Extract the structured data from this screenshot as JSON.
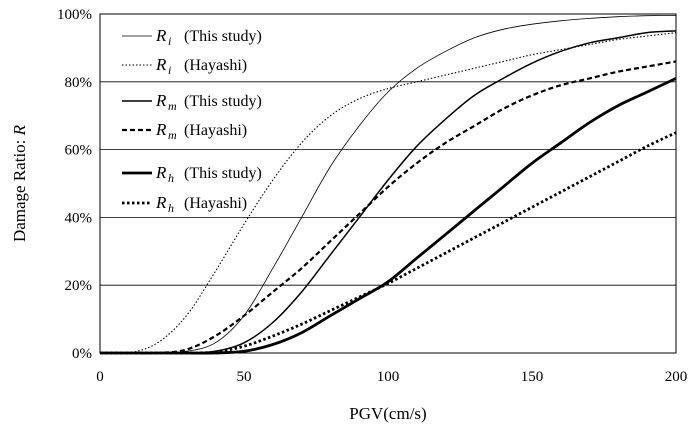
{
  "chart_data": {
    "type": "line",
    "title": "",
    "xlabel": "PGV(cm/s)",
    "ylabel": "Damage Ratio: ",
    "ylabel_symbol": "R",
    "xlim": [
      0,
      200
    ],
    "ylim": [
      0,
      100
    ],
    "x_ticks": [
      "0",
      "50",
      "100",
      "150",
      "200"
    ],
    "y_ticks": [
      "0%",
      "20%",
      "40%",
      "60%",
      "80%",
      "100%"
    ],
    "grid": "horizontal",
    "legend_position": "top-left",
    "x": [
      0,
      10,
      20,
      30,
      40,
      50,
      60,
      70,
      80,
      90,
      100,
      110,
      120,
      130,
      140,
      150,
      160,
      170,
      180,
      190,
      200
    ],
    "series": [
      {
        "symbol": "R",
        "sub": "i",
        "source": "(This study)",
        "style": "thin-solid",
        "values": [
          0,
          0,
          0,
          0.5,
          3,
          11,
          25,
          40,
          55,
          67,
          77,
          84,
          89,
          93,
          95.5,
          97,
          98,
          98.7,
          99.2,
          99.5,
          99.6
        ]
      },
      {
        "symbol": "R",
        "sub": "i",
        "source": "(Hayashi)",
        "style": "thin-dotted",
        "values": [
          0,
          0,
          3,
          11,
          24,
          38,
          51,
          62,
          70,
          75,
          78,
          80,
          82,
          84,
          86,
          88,
          89.5,
          91,
          92.5,
          93.5,
          94.5
        ]
      },
      {
        "symbol": "R",
        "sub": "m",
        "source": "(This study)",
        "style": "medium-solid",
        "values": [
          0,
          0,
          0,
          0,
          0.5,
          3,
          9,
          18,
          29,
          40,
          51,
          61,
          69,
          76,
          81,
          85.5,
          89,
          91.5,
          93,
          94.5,
          95
        ]
      },
      {
        "symbol": "R",
        "sub": "m",
        "source": "(Hayashi)",
        "style": "medium-dashed",
        "values": [
          0,
          0,
          0,
          1,
          5,
          11,
          18,
          25,
          33,
          41,
          49,
          56,
          62,
          67,
          72,
          76,
          79,
          81,
          83,
          84.5,
          86
        ]
      },
      {
        "symbol": "R",
        "sub": "h",
        "source": "(This study)",
        "style": "thick-solid",
        "values": [
          0,
          0,
          0,
          0,
          0,
          0.5,
          2.5,
          6,
          11,
          16,
          21,
          28,
          35,
          42,
          49,
          56,
          62,
          68,
          73,
          77,
          81
        ]
      },
      {
        "symbol": "R",
        "sub": "h",
        "source": "(Hayashi)",
        "style": "thick-dotted",
        "values": [
          0,
          0,
          0,
          0,
          0.3,
          2,
          5,
          8.5,
          12.5,
          16.5,
          20.5,
          25,
          29.5,
          34,
          38.5,
          43,
          47.5,
          52,
          56.5,
          61,
          65
        ]
      }
    ]
  }
}
